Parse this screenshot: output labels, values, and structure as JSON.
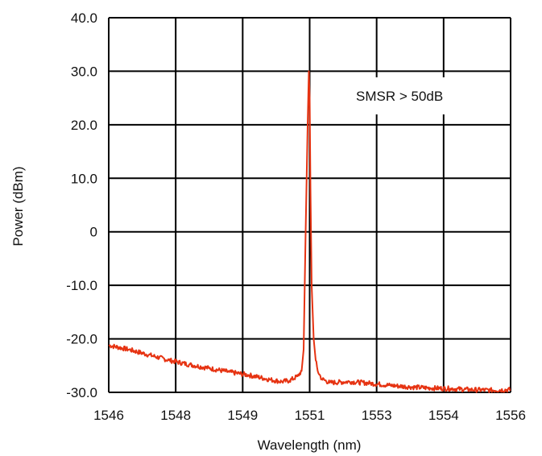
{
  "chart_data": {
    "type": "line",
    "title": "",
    "xlabel": "Wavelength (nm)",
    "ylabel": "Power (dBm)",
    "x_tick_labels": [
      "1546",
      "1548",
      "1549",
      "1551",
      "1553",
      "1554",
      "1556"
    ],
    "y_tick_labels": [
      "40.0",
      "30.0",
      "20.0",
      "10.0",
      "0",
      "-10.0",
      "-20.0",
      "-30.0"
    ],
    "xlim": [
      1546,
      1556
    ],
    "ylim": [
      -30,
      40
    ],
    "grid": true,
    "annotation": "SMSR > 50dB",
    "series": [
      {
        "color": "#e63312",
        "x": [
          1546.0,
          1546.5,
          1547.0,
          1547.5,
          1548.0,
          1548.5,
          1549.0,
          1549.5,
          1550.0,
          1550.3,
          1550.5,
          1550.7,
          1550.8,
          1550.85,
          1550.9,
          1550.95,
          1550.98,
          1551.0,
          1551.02,
          1551.05,
          1551.1,
          1551.15,
          1551.2,
          1551.3,
          1551.5,
          1552.0,
          1552.5,
          1553.0,
          1553.5,
          1554.0,
          1554.5,
          1555.0,
          1555.5,
          1556.0
        ],
        "y": [
          -21.2,
          -22.0,
          -23.0,
          -24.0,
          -24.8,
          -25.5,
          -26.2,
          -26.8,
          -27.6,
          -28.0,
          -27.8,
          -27.0,
          -26.0,
          -22.0,
          0.0,
          20.0,
          30.0,
          25.0,
          8.0,
          -10.0,
          -20.0,
          -24.0,
          -26.0,
          -27.5,
          -28.2,
          -28.0,
          -28.3,
          -28.7,
          -29.0,
          -29.2,
          -29.3,
          -29.5,
          -29.6,
          -29.5
        ]
      }
    ]
  }
}
